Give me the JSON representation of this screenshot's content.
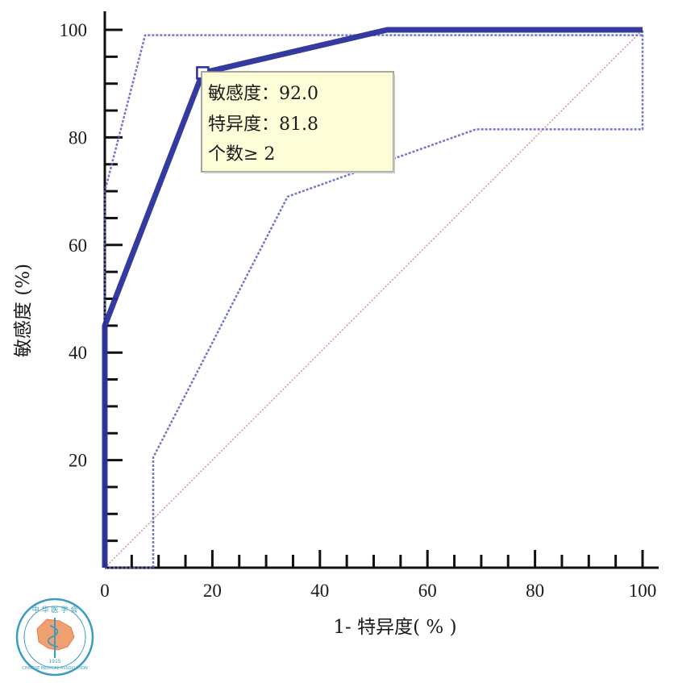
{
  "chart_data": {
    "type": "line",
    "xlabel": "1- 特异度( % )",
    "ylabel": "敏感度 (%)",
    "xlim": [
      0,
      100
    ],
    "ylim": [
      0,
      100
    ],
    "x_ticks": [
      0,
      20,
      40,
      60,
      80,
      100
    ],
    "y_ticks": [
      20,
      40,
      60,
      80,
      100
    ],
    "y_zero_label": "0",
    "grid": false,
    "legend": "none",
    "series": [
      {
        "role": "roc-curve",
        "style": "solid",
        "color": "#2a2f9a",
        "x": [
          0,
          0,
          18.2,
          52.5,
          100
        ],
        "y": [
          0,
          45,
          92,
          100,
          100
        ]
      },
      {
        "role": "upper-confidence-bound",
        "style": "dotted",
        "color": "#5a62b8",
        "x": [
          0,
          0,
          7.5,
          100
        ],
        "y": [
          0,
          70,
          99,
          99
        ]
      },
      {
        "role": "lower-confidence-bound",
        "style": "dotted",
        "color": "#5a62b8",
        "x": [
          0,
          9,
          9,
          34,
          69,
          100,
          100
        ],
        "y": [
          0,
          0,
          20.5,
          69,
          81.5,
          81.5,
          100
        ]
      },
      {
        "role": "reference-diagonal",
        "style": "dotted",
        "color": "#d08a8a",
        "x": [
          0,
          100
        ],
        "y": [
          0,
          100
        ]
      }
    ],
    "highlight_point": {
      "x": 18.2,
      "y": 92
    },
    "annotation": {
      "line1": "敏感度：92.0",
      "line2": "特异度：81.8",
      "line3": "个数≥ 2",
      "background": "#fdfdd8"
    }
  },
  "logo": {
    "top_text": "中 华 医 学 会",
    "bottom_text": "CHINESE MEDICAL ASSOCIATION",
    "year": "1915"
  }
}
